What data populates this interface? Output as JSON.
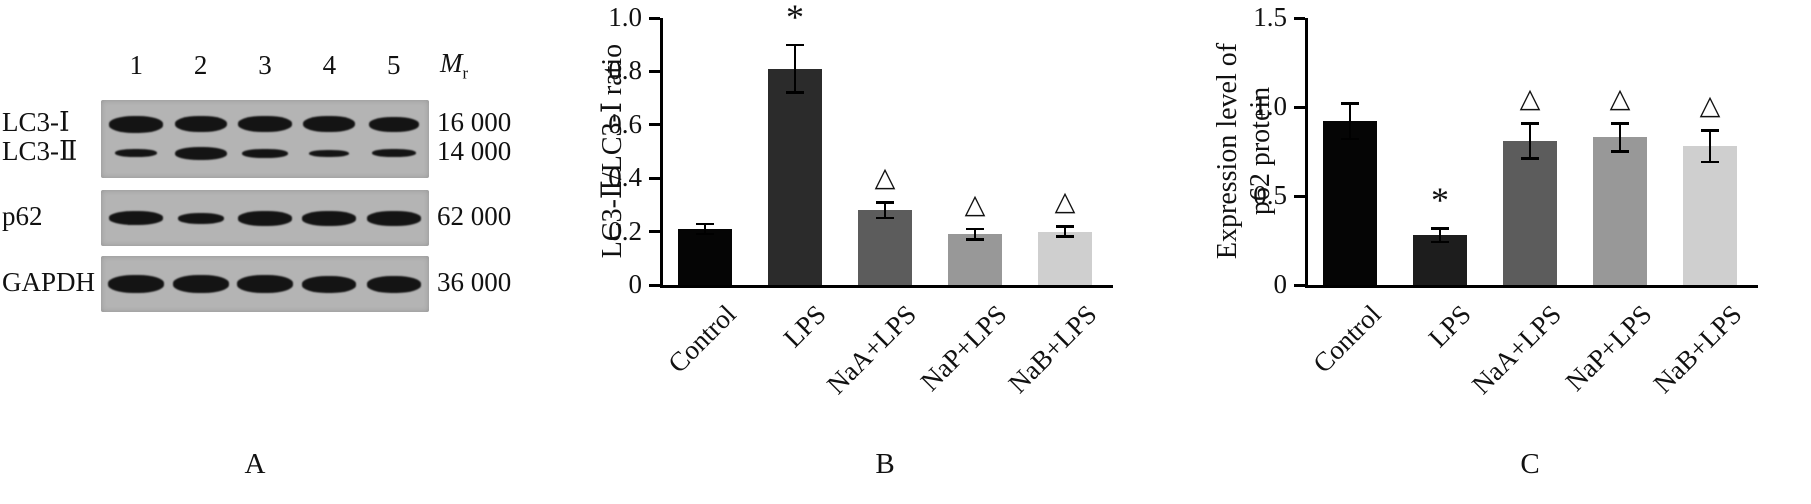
{
  "panelA": {
    "label": "A",
    "lanes": [
      "1",
      "2",
      "3",
      "4",
      "5"
    ],
    "mr_main": "M",
    "mr_sub": "r",
    "strips": [
      {
        "rows": [
          {
            "label": "LC3-Ⅰ",
            "weight": "16 000",
            "band_heights": [
              17,
              16,
              16,
              16,
              15
            ],
            "band_widths": [
              54,
              52,
              54,
              52,
              50
            ]
          },
          {
            "label": "LC3-Ⅱ",
            "weight": "14 000",
            "band_heights": [
              8,
              13,
              9,
              7,
              8
            ],
            "band_widths": [
              42,
              52,
              46,
              40,
              44
            ]
          }
        ]
      },
      {
        "rows": [
          {
            "label": "p62",
            "weight": "62 000",
            "band_heights": [
              14,
              11,
              15,
              15,
              15
            ],
            "band_widths": [
              54,
              46,
              54,
              54,
              54
            ]
          }
        ]
      },
      {
        "rows": [
          {
            "label": "GAPDH",
            "weight": "36 000",
            "band_heights": [
              18,
              18,
              18,
              17,
              17
            ],
            "band_widths": [
              56,
              56,
              56,
              54,
              54
            ]
          }
        ]
      }
    ],
    "colors": {
      "strip_bg": "#b4b4b4",
      "band": "#141414"
    }
  },
  "chart_data": [
    {
      "type": "bar",
      "panel_label": "B",
      "ylabel": "LC3-Ⅱ/LC3-Ⅰ ratio",
      "categories": [
        "Control",
        "LPS",
        "NaA+LPS",
        "NaP+LPS",
        "NaB+LPS"
      ],
      "values": [
        0.21,
        0.81,
        0.28,
        0.19,
        0.2
      ],
      "errors": [
        0.02,
        0.09,
        0.03,
        0.02,
        0.02
      ],
      "annotations": [
        "",
        "*",
        "△",
        "△",
        "△"
      ],
      "ylim": [
        0,
        1.0
      ],
      "yticks": [
        0,
        0.2,
        0.4,
        0.6,
        0.8,
        1.0
      ],
      "ytick_labels": [
        "0",
        "0.2",
        "0.4",
        "0.6",
        "0.8",
        "1.0"
      ],
      "bar_colors": [
        "#050505",
        "#2b2b2b",
        "#5c5c5c",
        "#989898",
        "#cfcfcf"
      ],
      "grid": false,
      "legend": null
    },
    {
      "type": "bar",
      "panel_label": "C",
      "ylabel": "Expression level of\np62 protein",
      "categories": [
        "Control",
        "LPS",
        "NaA+LPS",
        "NaP+LPS",
        "NaB+LPS"
      ],
      "values": [
        0.92,
        0.28,
        0.81,
        0.83,
        0.78
      ],
      "errors": [
        0.1,
        0.04,
        0.1,
        0.08,
        0.09
      ],
      "annotations": [
        "",
        "*",
        "△",
        "△",
        "△"
      ],
      "ylim": [
        0,
        1.5
      ],
      "yticks": [
        0,
        0.5,
        1.0,
        1.5
      ],
      "ytick_labels": [
        "0",
        "0.5",
        "1.0",
        "1.5"
      ],
      "bar_colors": [
        "#050505",
        "#1d1d1d",
        "#5c5c5c",
        "#989898",
        "#cfcfcf"
      ],
      "grid": false,
      "legend": null
    }
  ]
}
